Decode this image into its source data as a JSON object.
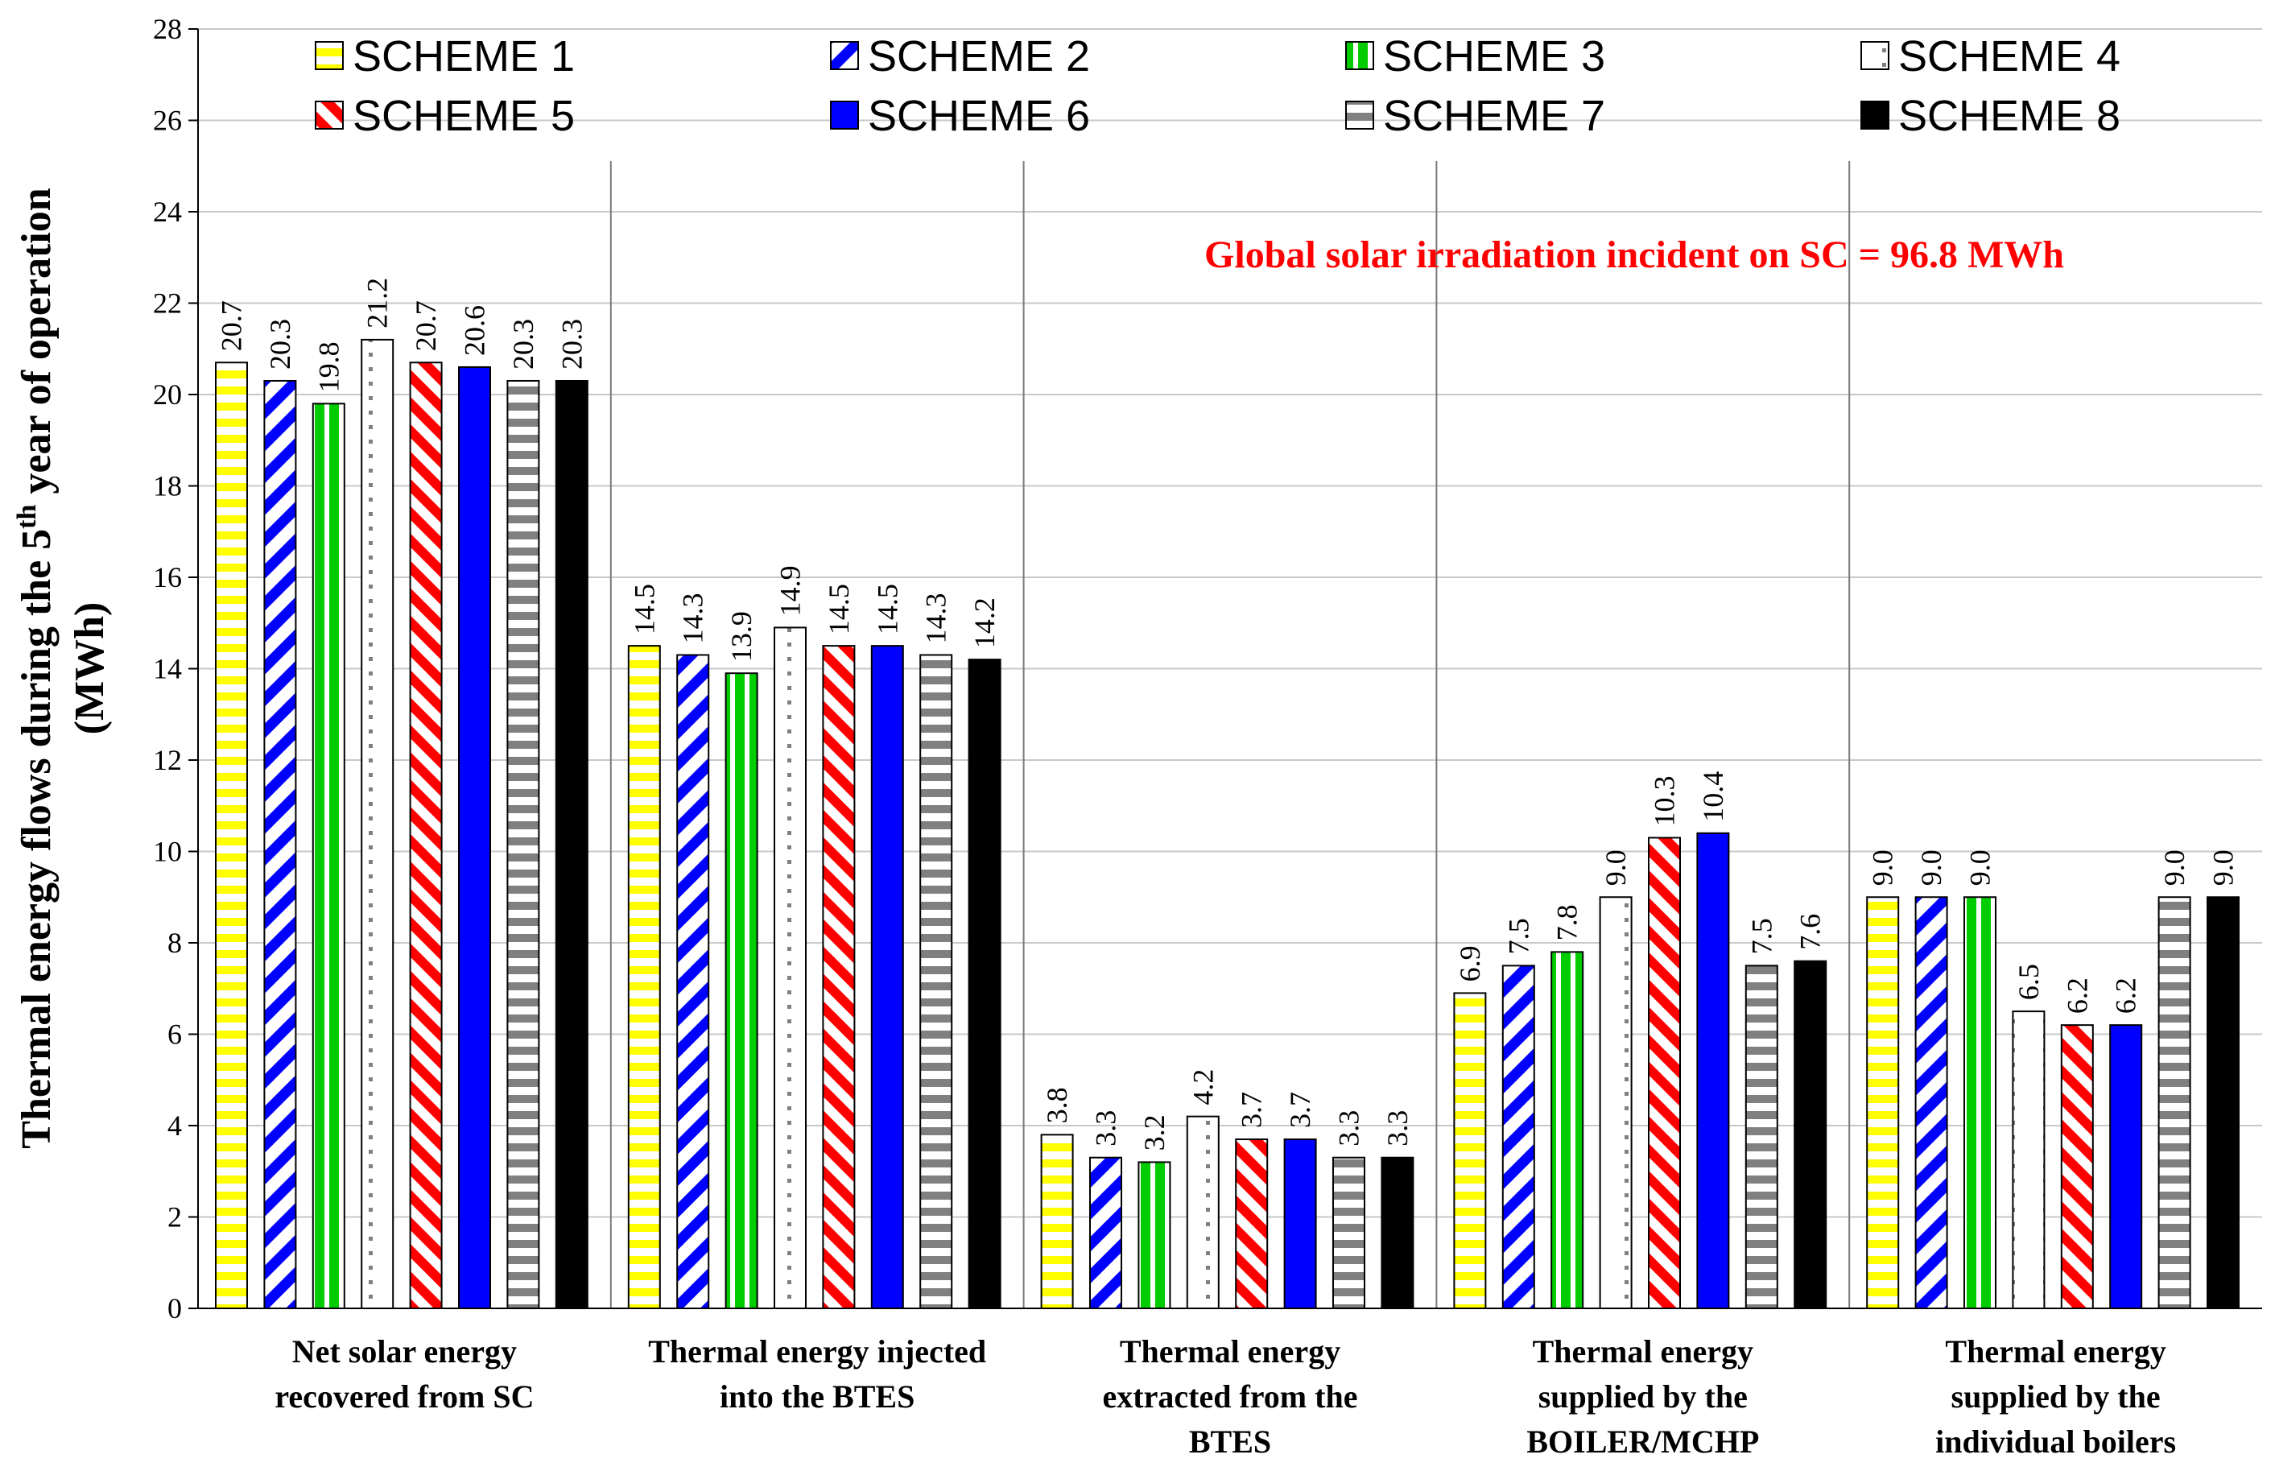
{
  "chart_data": {
    "type": "bar",
    "ylabel_main": "Thermal energy flows during the 5",
    "ylabel_sup": "th",
    "ylabel_tail": " year of operation",
    "ylabel_line2": "(MWh)",
    "ylim": [
      0,
      28
    ],
    "yticks": [
      0,
      2,
      4,
      6,
      8,
      10,
      12,
      14,
      16,
      18,
      20,
      22,
      24,
      26,
      28
    ],
    "grid": true,
    "legend_position": "top",
    "annotation": "Global solar irradiation incident on SC = 96.8 MWh",
    "annotation_color": "#ff0000",
    "categories": [
      [
        "Net solar energy",
        "recovered from SC"
      ],
      [
        "Thermal energy injected",
        "into the BTES"
      ],
      [
        "Thermal energy",
        "extracted from the",
        "BTES"
      ],
      [
        "Thermal energy",
        "supplied by the",
        "BOILER/MCHP"
      ],
      [
        "Thermal energy",
        "supplied by the",
        "individual boilers"
      ]
    ],
    "series": [
      {
        "name": "SCHEME 1",
        "pattern": "hstripe",
        "color": "#ffff00",
        "values": [
          20.7,
          14.5,
          3.8,
          6.9,
          9.0
        ]
      },
      {
        "name": "SCHEME 2",
        "pattern": "diag",
        "color": "#0000ff",
        "values": [
          20.3,
          14.3,
          3.3,
          7.5,
          9.0
        ]
      },
      {
        "name": "SCHEME 3",
        "pattern": "vstripe",
        "color": "#00cc00",
        "values": [
          19.8,
          13.9,
          3.2,
          7.8,
          9.0
        ]
      },
      {
        "name": "SCHEME 4",
        "pattern": "dots",
        "color": "#808080",
        "values": [
          21.2,
          14.9,
          4.2,
          9.0,
          6.5
        ]
      },
      {
        "name": "SCHEME 5",
        "pattern": "zigzag",
        "color": "#ff0000",
        "values": [
          20.7,
          14.5,
          3.7,
          10.3,
          6.2
        ]
      },
      {
        "name": "SCHEME 6",
        "pattern": "solid",
        "color": "#0000ff",
        "values": [
          20.6,
          14.5,
          3.7,
          10.4,
          6.2
        ]
      },
      {
        "name": "SCHEME 7",
        "pattern": "hstripe",
        "color": "#808080",
        "values": [
          20.3,
          14.3,
          3.3,
          7.5,
          9.0
        ]
      },
      {
        "name": "SCHEME 8",
        "pattern": "solid",
        "color": "#000000",
        "values": [
          20.3,
          14.2,
          3.3,
          7.6,
          9.0
        ]
      }
    ]
  }
}
